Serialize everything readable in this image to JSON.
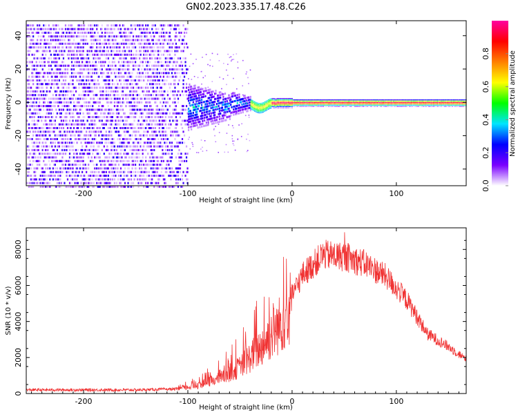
{
  "page": {
    "title": "GN02.2023.335.17.48.C26"
  },
  "chart_data": [
    {
      "type": "heatmap",
      "title": "GN02.2023.335.17.48.C26",
      "xlabel": "Height of straight line (km)",
      "ylabel": "Frequency (Hz)",
      "xlim": [
        -255,
        167
      ],
      "ylim": [
        -50,
        49
      ],
      "xticks": [
        -200,
        -100,
        0,
        100
      ],
      "xtick_labels": [
        "-200",
        "-100",
        "0",
        "100"
      ],
      "yticks": [
        -40,
        -20,
        0,
        20,
        40
      ],
      "ytick_labels": [
        "-40",
        "-20",
        "0",
        "20",
        "40"
      ],
      "colorbar": {
        "label": "Normalized spectral amplitude",
        "range": [
          0,
          1
        ],
        "ticks": [
          0.0,
          0.2,
          0.4,
          0.6,
          0.8
        ],
        "tick_labels": [
          "0.0",
          "0.2",
          "0.4",
          "0.6",
          "0.8"
        ],
        "colors": [
          "#ffffff",
          "#7a00ff",
          "#0000ff",
          "#00e5ff",
          "#00ff00",
          "#ffff00",
          "#ff8000",
          "#ff0000",
          "#ff00a0"
        ]
      },
      "regions": [
        {
          "name": "noise",
          "x_range": [
            -255,
            -100
          ],
          "freq_spread": 49,
          "amplitude": 0.2
        },
        {
          "name": "transition",
          "x_range": [
            -100,
            -40
          ],
          "freq_spread": 12,
          "amplitude": 0.35
        },
        {
          "name": "signal-line",
          "x_range": [
            -40,
            167
          ],
          "freq_center": 0,
          "amplitude": 0.9
        }
      ]
    },
    {
      "type": "line",
      "xlabel": "Height of straight line (km)",
      "ylabel": "SNR (10 * v/v)",
      "xlim": [
        -255,
        167
      ],
      "ylim": [
        0,
        9200
      ],
      "xticks": [
        -200,
        -100,
        0,
        100
      ],
      "xtick_labels": [
        "-200",
        "-100",
        "0",
        "100"
      ],
      "yticks": [
        0,
        2000,
        4000,
        6000,
        8000
      ],
      "ytick_labels": [
        "0",
        "2000",
        "4000",
        "6000",
        "8000"
      ],
      "color": "#f03232",
      "envelope": {
        "x": [
          -255,
          -200,
          -150,
          -110,
          -90,
          -70,
          -50,
          -30,
          -10,
          10,
          30,
          50,
          70,
          90,
          110,
          130,
          150,
          167
        ],
        "y": [
          200,
          200,
          200,
          250,
          500,
          900,
          1600,
          2800,
          4300,
          6600,
          7700,
          7600,
          7200,
          6500,
          5200,
          3300,
          2600,
          1900
        ]
      }
    }
  ]
}
